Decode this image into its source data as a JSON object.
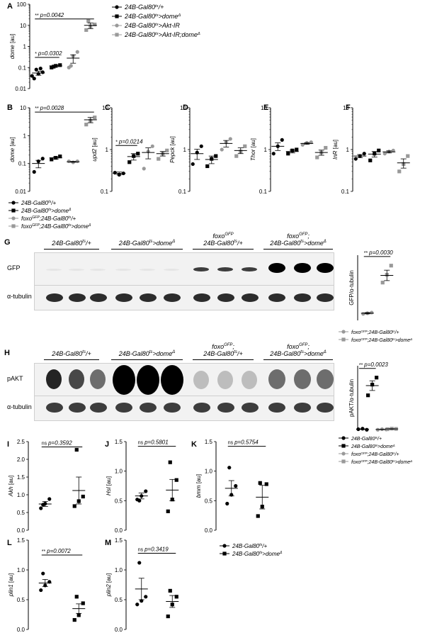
{
  "legend_top": [
    {
      "label": "24B-Gal80ts/+",
      "marker": "circle",
      "color": "#000000"
    },
    {
      "label": "24B-Gal80ts>domeΔ",
      "marker": "square",
      "color": "#000000"
    },
    {
      "label": "24B-Gal80ts>Akt-IR",
      "marker": "circle",
      "color": "#999999"
    },
    {
      "label": "24B-Gal80ts>Akt-IR;domeΔ",
      "marker": "square",
      "color": "#999999"
    }
  ],
  "legend_b": [
    {
      "label": "24B-Gal80ts/+",
      "marker": "circle",
      "color": "#000000"
    },
    {
      "label": "24B-Gal80ts>domeΔ",
      "marker": "square",
      "color": "#000000"
    },
    {
      "label": "foxoGFP;24B-Gal80ts/+",
      "marker": "circle",
      "color": "#999999"
    },
    {
      "label": "foxoGFP;24B-Gal80ts>domeΔ",
      "marker": "square",
      "color": "#999999"
    }
  ],
  "legend_g": [
    {
      "label": "foxoGFP;24B-Gal80ts/+",
      "marker": "circle",
      "color": "#999999"
    },
    {
      "label": "foxoGFP;24B-Gal80ts>domeΔ",
      "marker": "square",
      "color": "#999999"
    }
  ],
  "legend_h": [
    {
      "label": "24B-Gal80ts/+",
      "marker": "circle",
      "color": "#000000"
    },
    {
      "label": "24B-Gal80ts>domeΔ",
      "marker": "square",
      "color": "#000000"
    },
    {
      "label": "foxoGFP;24B-Gal80ts/+",
      "marker": "circle",
      "color": "#999999"
    },
    {
      "label": "foxoGFP;24B-Gal80ts>domeΔ",
      "marker": "square",
      "color": "#999999"
    }
  ],
  "legend_lm": [
    {
      "label": "24B-Gal80ts/+",
      "marker": "circle",
      "color": "#000000"
    },
    {
      "label": "24B-Gal80ts>domeΔ",
      "marker": "square",
      "color": "#000000"
    }
  ],
  "blot_g": {
    "letter": "G",
    "headers": [
      "24B-Gal80ts/+",
      "24B-Gal80ts>domeΔ",
      "foxoGFP\n24B-Gal80ts/+",
      "foxoGFP;\n24B-Gal80ts>domeΔ"
    ],
    "rows": [
      "GFP",
      "α-tubulin"
    ]
  },
  "blot_h": {
    "letter": "H",
    "headers": [
      "24B-Gal80ts/+",
      "24B-Gal80ts>domeΔ",
      "foxoGFP;\n24B-Gal80ts/+",
      "foxoGFP;\n24B-Gal80ts>domeΔ"
    ],
    "rows": [
      "pAKT",
      "α-tubulin"
    ]
  },
  "colors": {
    "black": "#000000",
    "grey": "#999999"
  },
  "chart_data": [
    {
      "letter": "A",
      "type": "scatter",
      "scale": "log",
      "ylabel": "dome [au]",
      "ylim": [
        0.01,
        100
      ],
      "ticks": [
        0.01,
        0.1,
        1,
        10,
        100
      ],
      "tick_labels": [
        "0.01",
        "0.1",
        "1",
        "10",
        "100"
      ],
      "categories": [
        "24B-Gal80ts/+",
        "24B-Gal80ts>domeΔ",
        "24B-Gal80ts>Akt-IR",
        "24B-Gal80ts>Akt-IR;domeΔ"
      ],
      "series": [
        {
          "points": [
            0.03,
            0.05,
            0.06,
            0.08,
            0.09,
            0.04
          ],
          "mean": 0.055,
          "err": 0.012,
          "marker": "circle",
          "color": "#000000"
        },
        {
          "points": [
            0.1,
            0.12,
            0.13,
            0.11
          ],
          "mean": 0.12,
          "err": 0.01,
          "marker": "square",
          "color": "#000000"
        },
        {
          "points": [
            0.1,
            0.35,
            0.55,
            0.12
          ],
          "mean": 0.28,
          "err": 0.12,
          "marker": "circle",
          "color": "#999999"
        },
        {
          "points": [
            6,
            9,
            11,
            16
          ],
          "mean": 10,
          "err": 3,
          "marker": "square",
          "color": "#999999"
        }
      ],
      "comparisons": [
        {
          "from": 0,
          "to": 3,
          "stars": "**",
          "label": "p=0.0042",
          "value": 20
        },
        {
          "from": 0,
          "to": 1,
          "stars": "*",
          "label": "p=0.0302",
          "value": 0.3
        }
      ]
    },
    {
      "letter": "B",
      "type": "scatter",
      "scale": "log",
      "ylabel": "dome [au]",
      "ylim": [
        0.01,
        10
      ],
      "ticks": [
        0.01,
        0.1,
        1,
        10
      ],
      "tick_labels": [
        "0.01",
        "0.1",
        "1",
        "10"
      ],
      "categories": [
        "24B-Gal80ts/+",
        "24B-Gal80ts>domeΔ",
        "foxoGFP;24B-Gal80ts/+",
        "foxoGFP;24B-Gal80ts>domeΔ"
      ],
      "series": [
        {
          "points": [
            0.05,
            0.12,
            0.15
          ],
          "mean": 0.1,
          "err": 0.03,
          "marker": "circle",
          "color": "#000000"
        },
        {
          "points": [
            0.14,
            0.16,
            0.18
          ],
          "mean": 0.16,
          "err": 0.015,
          "marker": "square",
          "color": "#000000"
        },
        {
          "points": [
            0.12,
            0.11,
            0.12
          ],
          "mean": 0.115,
          "err": 0.004,
          "marker": "circle",
          "color": "#999999"
        },
        {
          "points": [
            2.5,
            3.5,
            4.5
          ],
          "mean": 3.7,
          "err": 0.8,
          "marker": "square",
          "color": "#999999"
        }
      ],
      "comparisons": [
        {
          "from": 0,
          "to": 3,
          "stars": "**",
          "label": "p=0.0028",
          "value": 7
        }
      ]
    },
    {
      "letter": "C",
      "type": "scatter",
      "scale": "log",
      "ylabel": "upd2 [au]",
      "ylim": [
        0.1,
        10
      ],
      "ticks": [
        0.1,
        1,
        10
      ],
      "tick_labels": [
        "0.1",
        "1",
        "10"
      ],
      "categories": [
        "24B-Gal80ts/+",
        "24B-Gal80ts>domeΔ",
        "foxoGFP;24B-Gal80ts/+",
        "foxoGFP;24B-Gal80ts>domeΔ"
      ],
      "series": [
        {
          "points": [
            0.28,
            0.25,
            0.27
          ],
          "mean": 0.27,
          "err": 0.02,
          "marker": "circle",
          "color": "#000000"
        },
        {
          "points": [
            0.5,
            0.7,
            0.8
          ],
          "mean": 0.68,
          "err": 0.12,
          "marker": "square",
          "color": "#000000"
        },
        {
          "points": [
            0.35,
            0.9,
            1.2
          ],
          "mean": 0.85,
          "err": 0.25,
          "marker": "circle",
          "color": "#999999"
        },
        {
          "points": [
            0.6,
            0.8,
            0.95
          ],
          "mean": 0.8,
          "err": 0.1,
          "marker": "square",
          "color": "#999999"
        }
      ],
      "comparisons": [
        {
          "from": 0,
          "to": 1,
          "stars": "*",
          "label": "p=0.0214",
          "value": 1.25
        }
      ]
    },
    {
      "letter": "D",
      "type": "scatter",
      "scale": "log",
      "ylabel": "Pepck [au]",
      "ylim": [
        0.1,
        10
      ],
      "ticks": [
        0.1,
        1,
        10
      ],
      "tick_labels": [
        "0.1",
        "1",
        "10"
      ],
      "categories": [
        "24B-Gal80ts/+",
        "24B-Gal80ts>domeΔ",
        "foxoGFP;24B-Gal80ts/+",
        "foxoGFP;24B-Gal80ts>domeΔ"
      ],
      "series": [
        {
          "points": [
            0.45,
            0.85,
            1.2
          ],
          "mean": 0.8,
          "err": 0.22,
          "marker": "circle",
          "color": "#000000"
        },
        {
          "points": [
            0.4,
            0.6,
            0.7
          ],
          "mean": 0.58,
          "err": 0.12,
          "marker": "square",
          "color": "#000000"
        },
        {
          "points": [
            1.0,
            1.5,
            1.8
          ],
          "mean": 1.4,
          "err": 0.25,
          "marker": "circle",
          "color": "#999999"
        },
        {
          "points": [
            0.7,
            0.9,
            1.2
          ],
          "mean": 0.95,
          "err": 0.15,
          "marker": "square",
          "color": "#999999"
        }
      ],
      "comparisons": []
    },
    {
      "letter": "E",
      "type": "scatter",
      "scale": "log",
      "ylabel": "Thor [au]",
      "ylim": [
        0.1,
        10
      ],
      "ticks": [
        0.1,
        1,
        10
      ],
      "tick_labels": [
        "0.1",
        "1",
        "10"
      ],
      "categories": [
        "24B-Gal80ts/+",
        "24B-Gal80ts>domeΔ",
        "foxoGFP;24B-Gal80ts/+",
        "foxoGFP;24B-Gal80ts>domeΔ"
      ],
      "series": [
        {
          "points": [
            0.8,
            1.2,
            1.7
          ],
          "mean": 1.2,
          "err": 0.25,
          "marker": "circle",
          "color": "#000000"
        },
        {
          "points": [
            0.8,
            0.95,
            1.0
          ],
          "mean": 0.9,
          "err": 0.07,
          "marker": "square",
          "color": "#000000"
        },
        {
          "points": [
            1.3,
            1.45,
            1.5
          ],
          "mean": 1.4,
          "err": 0.06,
          "marker": "circle",
          "color": "#999999"
        },
        {
          "points": [
            0.65,
            0.85,
            1.1
          ],
          "mean": 0.85,
          "err": 0.12,
          "marker": "square",
          "color": "#999999"
        }
      ],
      "comparisons": []
    },
    {
      "letter": "F",
      "type": "scatter",
      "scale": "log",
      "ylabel": "InR [au]",
      "ylim": [
        0.1,
        10
      ],
      "ticks": [
        0.1,
        1,
        10
      ],
      "tick_labels": [
        "0.1",
        "1",
        "10"
      ],
      "categories": [
        "24B-Gal80ts/+",
        "24B-Gal80ts>domeΔ",
        "foxoGFP;24B-Gal80ts/+",
        "foxoGFP;24B-Gal80ts>domeΔ"
      ],
      "series": [
        {
          "points": [
            0.6,
            0.7,
            0.8
          ],
          "mean": 0.7,
          "err": 0.06,
          "marker": "circle",
          "color": "#000000"
        },
        {
          "points": [
            0.55,
            0.8,
            0.95
          ],
          "mean": 0.78,
          "err": 0.12,
          "marker": "square",
          "color": "#000000"
        },
        {
          "points": [
            0.8,
            0.9,
            0.95
          ],
          "mean": 0.88,
          "err": 0.05,
          "marker": "circle",
          "color": "#999999"
        },
        {
          "points": [
            0.3,
            0.45,
            0.7
          ],
          "mean": 0.48,
          "err": 0.12,
          "marker": "square",
          "color": "#999999"
        }
      ],
      "comparisons": []
    },
    {
      "letter": "",
      "type": "scatter",
      "scale": "linear",
      "ylabel": "GFP/α-tubulin",
      "ylim": [
        0,
        1
      ],
      "ticks": [],
      "tick_labels": [],
      "categories": [
        "foxoGFP;24B-Gal80ts/+",
        "foxoGFP;24B-Gal80ts>domeΔ"
      ],
      "series": [
        {
          "points": [
            0.1,
            0.11,
            0.12
          ],
          "mean": 0.11,
          "err": 0.01,
          "marker": "circle",
          "color": "#999999"
        },
        {
          "points": [
            0.58,
            0.7,
            0.84
          ],
          "mean": 0.69,
          "err": 0.08,
          "marker": "square",
          "color": "#999999"
        }
      ],
      "comparisons": [
        {
          "from": 0,
          "to": 1,
          "stars": "**",
          "label": "p=0.0030",
          "value": 0.98
        }
      ]
    },
    {
      "letter": "",
      "type": "scatter",
      "scale": "linear",
      "ylabel": "pAKT/α-tubulin",
      "ylim": [
        0,
        1.2
      ],
      "ticks": [],
      "tick_labels": [],
      "categories": [
        "24B-Gal80ts/+",
        "24B-Gal80ts>domeΔ",
        "foxoGFP;24B-Gal80ts/+",
        "foxoGFP;24B-Gal80ts>domeΔ"
      ],
      "series": [
        {
          "points": [
            0.02,
            0.03,
            0.01
          ],
          "mean": 0.02,
          "err": 0.005,
          "marker": "circle",
          "color": "#000000"
        },
        {
          "points": [
            0.65,
            0.85,
            0.98
          ],
          "mean": 0.83,
          "err": 0.09,
          "marker": "square",
          "color": "#000000"
        },
        {
          "points": [
            0.01,
            0.02,
            0.015
          ],
          "mean": 0.015,
          "err": 0.003,
          "marker": "circle",
          "color": "#999999"
        },
        {
          "points": [
            0.02,
            0.03,
            0.025
          ],
          "mean": 0.025,
          "err": 0.004,
          "marker": "square",
          "color": "#999999"
        }
      ],
      "comparisons": [
        {
          "from": 0,
          "to": 1,
          "stars": "**",
          "label": "p=0.0023",
          "value": 1.15
        }
      ]
    },
    {
      "letter": "I",
      "type": "scatter",
      "scale": "linear",
      "ylabel": "Akh [au]",
      "ylim": [
        0,
        2.5
      ],
      "ticks": [
        0,
        0.5,
        1,
        1.5,
        2,
        2.5
      ],
      "tick_labels": [
        "0.0",
        "0.5",
        "1.0",
        "1.5",
        "2.0",
        "2.5"
      ],
      "categories": [
        "24B-Gal80ts/+",
        "24B-Gal80ts>domeΔ"
      ],
      "series": [
        {
          "points": [
            0.62,
            0.75,
            0.88,
            0.72
          ],
          "mean": 0.74,
          "err": 0.07,
          "marker": "circle",
          "color": "#000000"
        },
        {
          "points": [
            0.68,
            0.82,
            0.95,
            2.27
          ],
          "mean": 1.12,
          "err": 0.38,
          "marker": "square",
          "color": "#000000"
        }
      ],
      "comparisons": [
        {
          "from": 0,
          "to": 1,
          "stars": "ns",
          "label": "p=0.3592",
          "value": 2.35
        }
      ]
    },
    {
      "letter": "J",
      "type": "scatter",
      "scale": "linear",
      "ylabel": "Hsl [au]",
      "ylim": [
        0,
        1.5
      ],
      "ticks": [
        0,
        0.5,
        1,
        1.5
      ],
      "tick_labels": [
        "0.0",
        "0.5",
        "1.0",
        "1.5"
      ],
      "categories": [
        "24B-Gal80ts/+",
        "24B-Gal80ts>domeΔ"
      ],
      "series": [
        {
          "points": [
            0.52,
            0.58,
            0.66,
            0.5
          ],
          "mean": 0.58,
          "err": 0.05,
          "marker": "circle",
          "color": "#000000"
        },
        {
          "points": [
            0.32,
            0.52,
            0.85,
            1.15
          ],
          "mean": 0.68,
          "err": 0.18,
          "marker": "square",
          "color": "#000000"
        }
      ],
      "comparisons": [
        {
          "from": 0,
          "to": 1,
          "stars": "ns",
          "label": "p=0.5801",
          "value": 1.42
        }
      ]
    },
    {
      "letter": "K",
      "type": "scatter",
      "scale": "linear",
      "ylabel": "bmm [au]",
      "ylim": [
        0,
        1.5
      ],
      "ticks": [
        0,
        0.5,
        1,
        1.5
      ],
      "tick_labels": [
        "0.0",
        "0.5",
        "1.0",
        "1.5"
      ],
      "categories": [
        "24B-Gal80ts/+",
        "24B-Gal80ts>domeΔ"
      ],
      "series": [
        {
          "points": [
            0.45,
            0.6,
            0.75,
            1.06
          ],
          "mean": 0.71,
          "err": 0.13,
          "marker": "circle",
          "color": "#000000"
        },
        {
          "points": [
            0.24,
            0.4,
            0.78,
            0.8
          ],
          "mean": 0.56,
          "err": 0.2,
          "marker": "square",
          "color": "#000000"
        }
      ],
      "comparisons": [
        {
          "from": 0,
          "to": 1,
          "stars": "ns",
          "label": "p=0.5754",
          "value": 1.42
        }
      ]
    },
    {
      "letter": "L",
      "type": "scatter",
      "scale": "linear",
      "ylabel": "plin1 [au]",
      "ylim": [
        0,
        1.5
      ],
      "ticks": [
        0,
        0.5,
        1,
        1.5
      ],
      "tick_labels": [
        "0.0",
        "0.5",
        "1.0",
        "1.5"
      ],
      "categories": [
        "24B-Gal80ts/+",
        "24B-Gal80ts>domeΔ"
      ],
      "series": [
        {
          "points": [
            0.66,
            0.74,
            0.8,
            0.94
          ],
          "mean": 0.78,
          "err": 0.06,
          "marker": "circle",
          "color": "#000000"
        },
        {
          "points": [
            0.16,
            0.24,
            0.44,
            0.55
          ],
          "mean": 0.35,
          "err": 0.08,
          "marker": "square",
          "color": "#000000"
        }
      ],
      "comparisons": [
        {
          "from": 0,
          "to": 1,
          "stars": "**",
          "label": "p=0.0072",
          "value": 1.25
        }
      ]
    },
    {
      "letter": "M",
      "type": "scatter",
      "scale": "linear",
      "ylabel": "plin2 [au]",
      "ylim": [
        0,
        1.5
      ],
      "ticks": [
        0,
        0.5,
        1,
        1.5
      ],
      "tick_labels": [
        "0.0",
        "0.5",
        "1.0",
        "1.5"
      ],
      "categories": [
        "24B-Gal80ts/+",
        "24B-Gal80ts>domeΔ"
      ],
      "series": [
        {
          "points": [
            0.42,
            0.48,
            0.55,
            1.12
          ],
          "mean": 0.68,
          "err": 0.18,
          "marker": "circle",
          "color": "#000000"
        },
        {
          "points": [
            0.22,
            0.42,
            0.55,
            0.65
          ],
          "mean": 0.47,
          "err": 0.1,
          "marker": "square",
          "color": "#000000"
        }
      ],
      "comparisons": [
        {
          "from": 0,
          "to": 1,
          "stars": "ns",
          "label": "p=0.3419",
          "value": 1.28
        }
      ]
    }
  ]
}
